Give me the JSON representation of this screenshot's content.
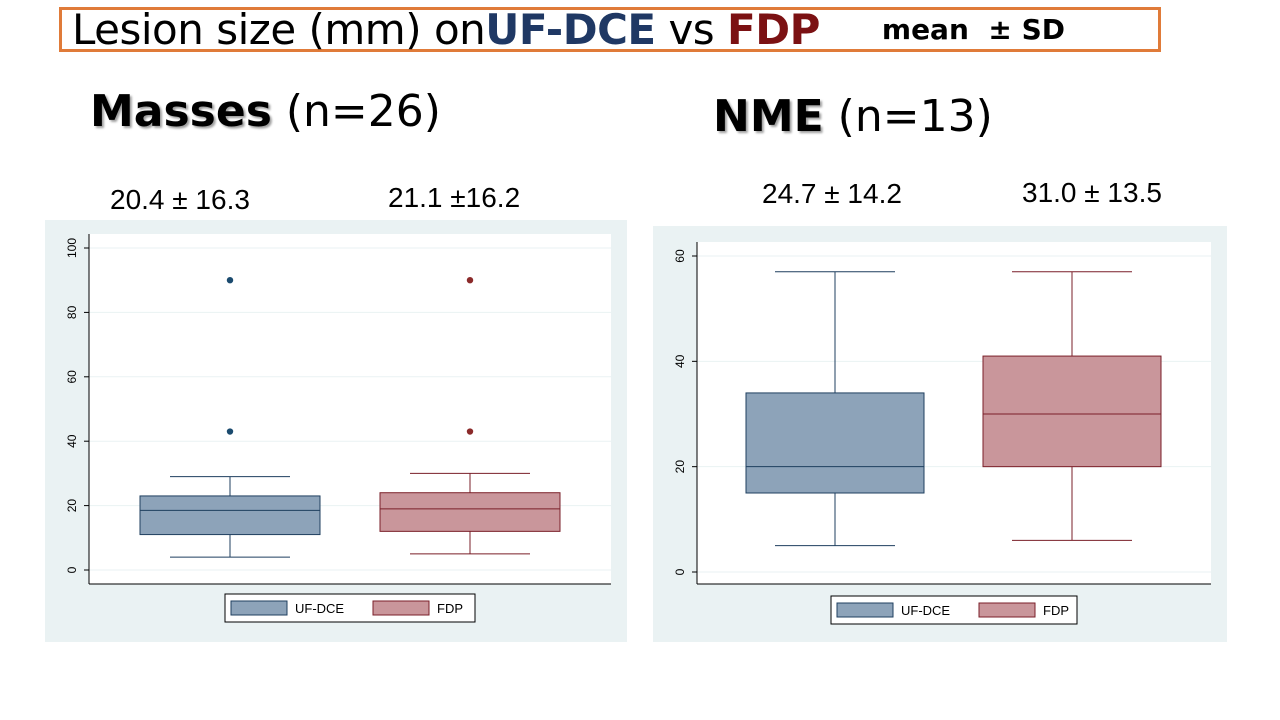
{
  "header": {
    "title_prefix": "Lesion size (mm) on ",
    "method_a": "UF-DCE",
    "vs": " vs ",
    "method_b": "FDP",
    "subtitle": "mean  ± SD"
  },
  "groups": [
    {
      "name": "Masses",
      "n_label": " (n=26)",
      "stat_a": "20.4 ± 16.3",
      "stat_b": "21.1 ±16.2"
    },
    {
      "name": "NME",
      "n_label": " (n=13)",
      "stat_a": "24.7 ± 14.2",
      "stat_b": "31.0 ± 13.5"
    }
  ],
  "colors": {
    "uf_fill": "#8da3b9",
    "uf_stroke": "#1f3f5f",
    "uf_point": "#1a4a6e",
    "fdp_fill": "#c9969b",
    "fdp_stroke": "#7a1f28",
    "fdp_point": "#8b2a2a",
    "title_border": "#e07b39",
    "panel_bg": "#eaf2f3"
  },
  "chart_data": [
    {
      "type": "box",
      "ylim": [
        0,
        100
      ],
      "yticks": [
        0,
        20,
        40,
        60,
        80,
        100
      ],
      "tick_labels": [
        "0",
        "20",
        "40",
        "60",
        "80",
        "100"
      ],
      "legend": [
        "UF-DCE",
        "FDP"
      ],
      "legend_position": "bottom",
      "grid": true,
      "series": [
        {
          "name": "UF-DCE",
          "whisker_low": 4,
          "q1": 11,
          "median": 18.5,
          "q3": 23,
          "whisker_high": 29,
          "outliers": [
            43,
            90
          ]
        },
        {
          "name": "FDP",
          "whisker_low": 5,
          "q1": 12,
          "median": 19,
          "q3": 24,
          "whisker_high": 30,
          "outliers": [
            43,
            90
          ]
        }
      ]
    },
    {
      "type": "box",
      "ylim": [
        0,
        60
      ],
      "yticks": [
        0,
        20,
        40,
        60
      ],
      "tick_labels": [
        "0",
        "20",
        "40",
        "60"
      ],
      "legend": [
        "UF-DCE",
        "FDP"
      ],
      "legend_position": "bottom",
      "grid": true,
      "series": [
        {
          "name": "UF-DCE",
          "whisker_low": 5,
          "q1": 15,
          "median": 20,
          "q3": 34,
          "whisker_high": 57,
          "outliers": []
        },
        {
          "name": "FDP",
          "whisker_low": 6,
          "q1": 20,
          "median": 30,
          "q3": 41,
          "whisker_high": 57,
          "outliers": []
        }
      ]
    }
  ]
}
